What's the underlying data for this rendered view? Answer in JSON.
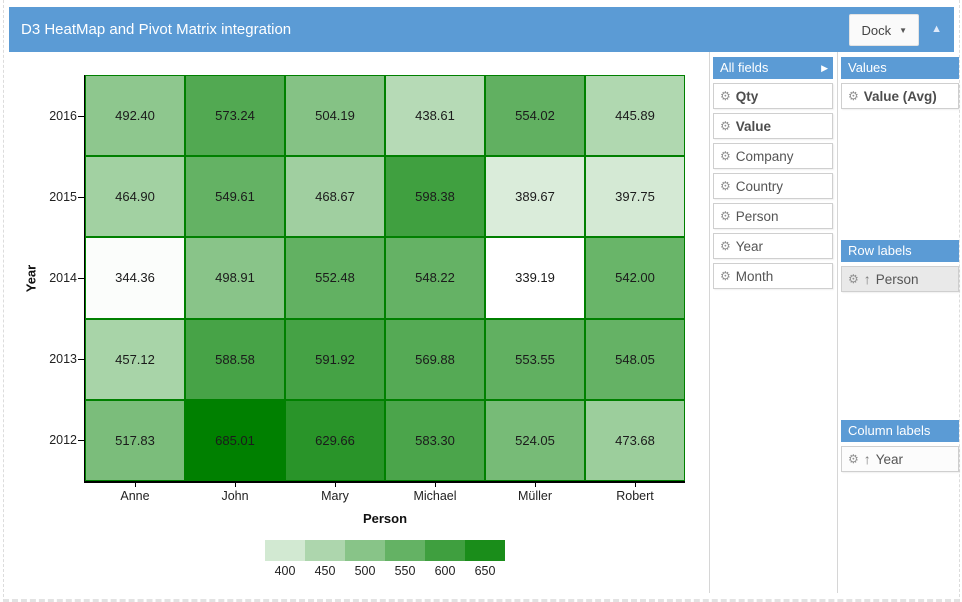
{
  "header": {
    "title": "D3 HeatMap and Pivot Matrix integration",
    "dock_button": "Dock",
    "accent_color": "#5b9bd5"
  },
  "chart_data": {
    "type": "heatmap",
    "title": "",
    "xlabel": "Person",
    "ylabel": "Year",
    "columns": [
      "Anne",
      "John",
      "Mary",
      "Michael",
      "Müller",
      "Robert"
    ],
    "rows": [
      "2016",
      "2015",
      "2014",
      "2013",
      "2012"
    ],
    "values": [
      [
        492.4,
        573.24,
        504.19,
        438.61,
        554.02,
        445.89
      ],
      [
        464.9,
        549.61,
        468.67,
        598.38,
        389.67,
        397.75
      ],
      [
        344.36,
        498.91,
        552.48,
        548.22,
        339.19,
        542.0
      ],
      [
        457.12,
        588.58,
        591.92,
        569.88,
        553.55,
        548.05
      ],
      [
        517.83,
        685.01,
        629.66,
        583.3,
        524.05,
        473.68
      ]
    ],
    "color_scale": {
      "min_value": 339.19,
      "max_value": 685.01,
      "min_color": "#ffffff",
      "max_color": "#008000"
    },
    "cell_border_color": "#008000",
    "legend": {
      "position": "bottom",
      "ticks": [
        400,
        450,
        500,
        550,
        600,
        650
      ]
    }
  },
  "fields_panel": {
    "all_fields": {
      "title": "All fields",
      "items": [
        {
          "label": "Qty",
          "bold": true
        },
        {
          "label": "Value",
          "bold": true
        },
        {
          "label": "Company",
          "bold": false
        },
        {
          "label": "Country",
          "bold": false
        },
        {
          "label": "Person",
          "bold": false
        },
        {
          "label": "Year",
          "bold": false
        },
        {
          "label": "Month",
          "bold": false
        }
      ]
    },
    "values_box": {
      "title": "Values",
      "items": [
        {
          "label": "Value (Avg)",
          "bold": true
        }
      ]
    },
    "row_labels": {
      "title": "Row labels",
      "items": [
        {
          "label": "Person",
          "sorted": true
        }
      ]
    },
    "column_labels": {
      "title": "Column labels",
      "items": [
        {
          "label": "Year",
          "sorted": true
        }
      ]
    }
  },
  "icons": {
    "gear": "⚙",
    "sort_asc": "↑",
    "expand": "▶",
    "collapse": "▲",
    "dropdown": "▼"
  }
}
